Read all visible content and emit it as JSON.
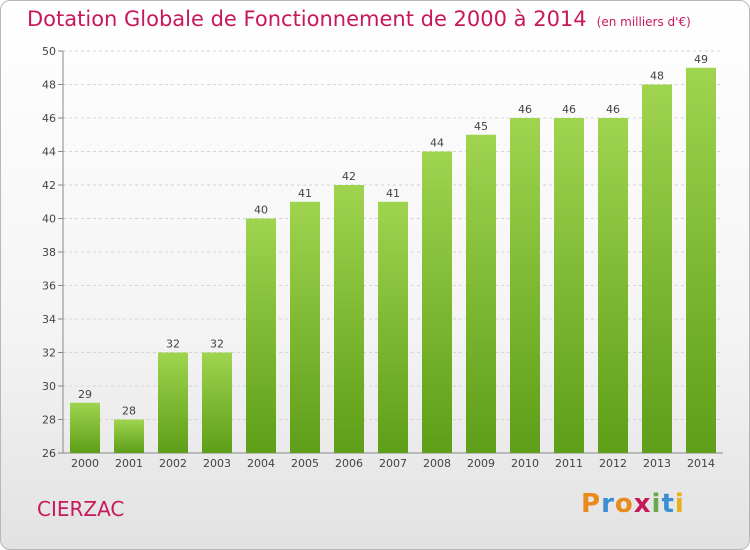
{
  "header": {
    "title": "Dotation Globale de Fonctionnement de 2000 à 2014",
    "unit": "(en milliers d'€)"
  },
  "footer": {
    "city": "CIERZAC",
    "logo": [
      "P",
      "r",
      "o",
      "x",
      "i",
      "t",
      "i"
    ]
  },
  "colors": {
    "bar_top": "#9fd44f",
    "bar_bottom": "#5e9e18",
    "title": "#c8185c"
  },
  "chart_data": {
    "type": "bar",
    "title": "Dotation Globale de Fonctionnement de 2000 à 2014",
    "subtitle": "(en milliers d'€)",
    "xlabel": "",
    "ylabel": "",
    "categories": [
      "2000",
      "2001",
      "2002",
      "2003",
      "2004",
      "2005",
      "2006",
      "2007",
      "2008",
      "2009",
      "2010",
      "2011",
      "2012",
      "2013",
      "2014"
    ],
    "values": [
      29,
      28,
      32,
      32,
      40,
      41,
      42,
      41,
      44,
      45,
      46,
      46,
      46,
      48,
      49
    ],
    "ylim": [
      26,
      50
    ],
    "yticks": [
      26,
      28,
      30,
      32,
      34,
      36,
      38,
      40,
      42,
      44,
      46,
      48,
      50
    ],
    "grid": true,
    "legend": "none"
  }
}
